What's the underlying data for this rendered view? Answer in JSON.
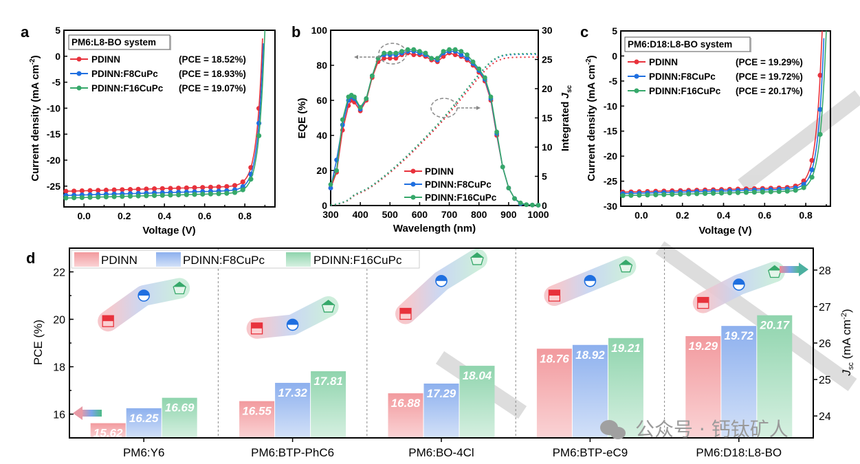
{
  "colors": {
    "PDINN": "#e8323c",
    "PDINN:F8CuPc": "#1f6fe0",
    "PDINN:F16CuPc": "#36a86a",
    "bar_PDINN": "#f29a9e",
    "bar_F8": "#8fb2ee",
    "bar_F16": "#92d6b0"
  },
  "series_names": [
    "PDINN",
    "PDINN:F8CuPc",
    "PDINN:F16CuPc"
  ],
  "watermark": "公众号 · 钙钛矿人",
  "chart_data": [
    {
      "panel": "a",
      "type": "line",
      "title": "PM6:L8-BO system",
      "xlabel": "Voltage (V)",
      "ylabel": "Current density (mA cm-2)",
      "xlim": [
        -0.1,
        0.95
      ],
      "ylim": [
        -29,
        5
      ],
      "xticks": [
        "0.0",
        "0.2",
        "0.4",
        "0.6",
        "0.8"
      ],
      "yticks": [
        "5",
        "0",
        "-5",
        "-10",
        "-15",
        "-20",
        "-25"
      ],
      "legend": [
        {
          "name": "PDINN",
          "pce": "(PCE = 18.52%)"
        },
        {
          "name": "PDINN:F8CuPc",
          "pce": "(PCE = 18.93%)"
        },
        {
          "name": "PDINN:F16CuPc",
          "pce": "(PCE = 19.07%)"
        }
      ],
      "series": [
        {
          "name": "PDINN",
          "jsc": -26.0,
          "voc": 0.885,
          "knee": 0.78
        },
        {
          "name": "PDINN:F8CuPc",
          "jsc": -26.8,
          "voc": 0.89,
          "knee": 0.79
        },
        {
          "name": "PDINN:F16CuPc",
          "jsc": -27.3,
          "voc": 0.895,
          "knee": 0.8
        }
      ]
    },
    {
      "panel": "b",
      "type": "line",
      "xlabel": "Wavelength (nm)",
      "ylabel": "EQE (%)",
      "y2label": "Integrated Jsc",
      "xlim": [
        300,
        1000
      ],
      "ylim": [
        0,
        100
      ],
      "y2lim": [
        0,
        30
      ],
      "xticks": [
        "300",
        "400",
        "500",
        "600",
        "700",
        "800",
        "900",
        "1000"
      ],
      "yticks": [
        "0",
        "20",
        "40",
        "60",
        "80",
        "100"
      ],
      "y2ticks": [
        "0",
        "5",
        "10",
        "15",
        "20",
        "25",
        "30"
      ],
      "legend": [
        "PDINN",
        "PDINN:F8CuPc",
        "PDINN:F16CuPc"
      ],
      "x": [
        300,
        320,
        340,
        360,
        370,
        380,
        400,
        420,
        440,
        460,
        480,
        500,
        520,
        540,
        560,
        580,
        600,
        620,
        640,
        660,
        680,
        700,
        720,
        740,
        760,
        780,
        800,
        820,
        840,
        860,
        880,
        900,
        920,
        940,
        960,
        980,
        1000
      ],
      "series": [
        {
          "name": "PDINN",
          "eqe": [
            10,
            19,
            43,
            57,
            60,
            59,
            54,
            60,
            73,
            82,
            84,
            84,
            84,
            86,
            87,
            86,
            86,
            85,
            83,
            82,
            85,
            87,
            86,
            85,
            83,
            80,
            76,
            71,
            60,
            40,
            22,
            10,
            4,
            1,
            0.5,
            0.3,
            0.2
          ],
          "jsc_final": 25.4
        },
        {
          "name": "PDINN:F8CuPc",
          "eqe": [
            10,
            26,
            46,
            60,
            62,
            61,
            55,
            61,
            74,
            84,
            86,
            86,
            86,
            87,
            88,
            88,
            87,
            86,
            84,
            83,
            87,
            88,
            88,
            86,
            84,
            81,
            77,
            72,
            61,
            41,
            22,
            10,
            4,
            1,
            0.5,
            0.3,
            0.2
          ],
          "jsc_final": 25.9
        },
        {
          "name": "PDINN:F16CuPc",
          "eqe": [
            12,
            20,
            49,
            62,
            63,
            62,
            56,
            61,
            74,
            84,
            87,
            87,
            87,
            88,
            89,
            89,
            88,
            87,
            84,
            84,
            88,
            89,
            89,
            88,
            86,
            82,
            78,
            73,
            62,
            42,
            22,
            10,
            4,
            1.5,
            0.5,
            0.3,
            0.2
          ],
          "jsc_final": 26.0
        }
      ]
    },
    {
      "panel": "c",
      "type": "line",
      "title": "PM6:D18:L8-BO system",
      "xlabel": "Voltage (V)",
      "ylabel": "Current density (mA cm-2)",
      "xlim": [
        -0.1,
        0.92
      ],
      "ylim": [
        -30,
        5
      ],
      "xticks": [
        "0.0",
        "0.2",
        "0.4",
        "0.6",
        "0.8"
      ],
      "yticks": [
        "5",
        "0",
        "-5",
        "-10",
        "-15",
        "-20",
        "-25",
        "-30"
      ],
      "legend": [
        {
          "name": "PDINN",
          "pce": "(PCE = 19.29%)"
        },
        {
          "name": "PDINN:F8CuPc",
          "pce": "(PCE = 19.72%)"
        },
        {
          "name": "PDINN:F16CuPc",
          "pce": "(PCE = 20.17%)"
        }
      ],
      "series": [
        {
          "name": "PDINN",
          "jsc": -27.2,
          "voc": 0.875,
          "knee": 0.76
        },
        {
          "name": "PDINN:F8CuPc",
          "jsc": -27.5,
          "voc": 0.885,
          "knee": 0.77
        },
        {
          "name": "PDINN:F16CuPc",
          "jsc": -27.9,
          "voc": 0.895,
          "knee": 0.79
        }
      ]
    },
    {
      "panel": "d",
      "type": "bar",
      "ylabel": "PCE (%)",
      "y2label": "Jsc (mA cm-2)",
      "ylim": [
        15,
        23
      ],
      "y2lim": [
        23.4,
        28.6
      ],
      "yticks": [
        "16",
        "18",
        "20",
        "22"
      ],
      "y2ticks": [
        "24",
        "25",
        "26",
        "27",
        "28"
      ],
      "categories": [
        "PM6:Y6",
        "PM6:BTP-PhC6",
        "PM6:BO-4Cl",
        "PM6:BTP-eC9",
        "PM6:D18:L8-BO"
      ],
      "legend": [
        "PDINN",
        "PDINN:F8CuPc",
        "PDINN:F16CuPc"
      ],
      "series": [
        {
          "name": "PDINN",
          "pce": [
            15.62,
            16.55,
            16.88,
            18.76,
            19.29
          ],
          "jsc": [
            26.6,
            26.4,
            26.8,
            27.3,
            27.1
          ]
        },
        {
          "name": "PDINN:F8CuPc",
          "pce": [
            16.25,
            17.32,
            17.29,
            18.92,
            19.72
          ],
          "jsc": [
            27.3,
            26.5,
            27.7,
            27.7,
            27.6
          ]
        },
        {
          "name": "PDINN:F16CuPc",
          "pce": [
            16.69,
            17.81,
            18.04,
            19.21,
            20.17
          ],
          "jsc": [
            27.5,
            27.0,
            28.3,
            28.1,
            27.95
          ]
        }
      ]
    }
  ]
}
